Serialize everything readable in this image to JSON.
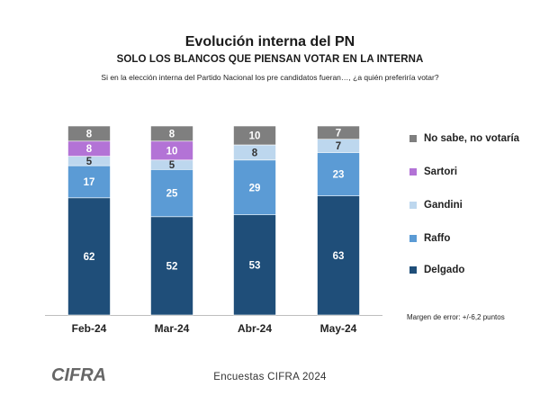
{
  "chart_data": {
    "type": "stacked-bar",
    "title": "Evolución interna del PN",
    "subtitle": "SOLO LOS BLANCOS QUE PIENSAN VOTAR EN LA INTERNA",
    "question": "Si en la elección interna del Partido Nacional los pre candidatos fueran…,  ¿a quién preferiría votar?",
    "categories": [
      "Feb-24",
      "Mar-24",
      "Abr-24",
      "May-24"
    ],
    "series": [
      {
        "name": "Delgado",
        "color": "#1f4e79",
        "values": [
          62,
          52,
          53,
          63
        ]
      },
      {
        "name": "Raffo",
        "color": "#5b9bd5",
        "values": [
          17,
          25,
          29,
          23
        ]
      },
      {
        "name": "Gandini",
        "color": "#bdd7ee",
        "values": [
          5,
          5,
          8,
          7
        ]
      },
      {
        "name": "Sartori",
        "color": "#b373d6",
        "values": [
          8,
          10,
          null,
          null
        ]
      },
      {
        "name": "No sabe, no votaría",
        "color": "#7f7f7f",
        "values": [
          8,
          8,
          10,
          7
        ]
      }
    ],
    "legend_order": [
      "No sabe, no votaría",
      "Sartori",
      "Gandini",
      "Raffo",
      "Delgado"
    ],
    "legend_position": "right",
    "ylim": [
      0,
      100
    ],
    "grid": false
  },
  "margin_note": "Margen de error: +/-6,2 puntos",
  "footer": "Encuestas CIFRA 2024",
  "logo": {
    "text": "CIFRA",
    "color": "#666666"
  }
}
